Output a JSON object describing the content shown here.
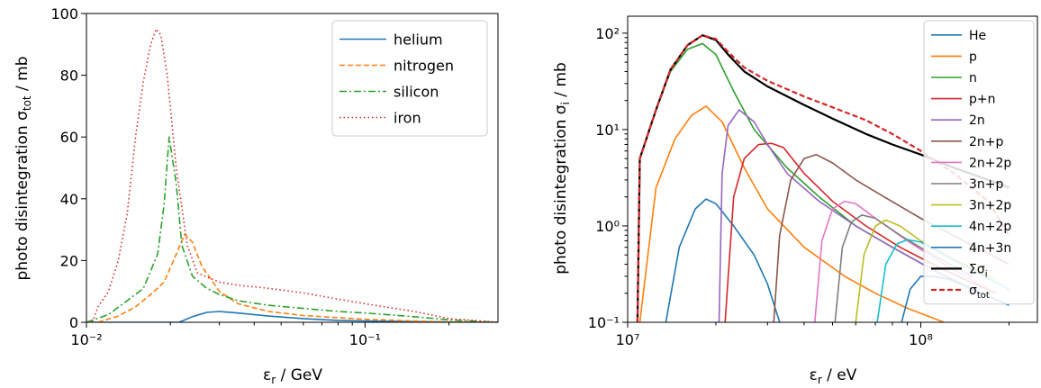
{
  "chart_data": [
    {
      "type": "line",
      "xlabel": "εr / GeV",
      "ylabel": "photo disintegration σtot / mb",
      "xscale": "log",
      "xlim": [
        0.01,
        0.3
      ],
      "ylim": [
        0,
        100
      ],
      "xticks": [
        {
          "value": 0.01,
          "label": "10⁻²"
        },
        {
          "value": 0.1,
          "label": "10⁻¹"
        }
      ],
      "yticks": [
        0,
        20,
        40,
        60,
        80,
        100
      ],
      "legend_position": "top-right",
      "series": [
        {
          "name": "helium",
          "color": "#1f77b4",
          "dash": "solid",
          "x": [
            0.01,
            0.0215,
            0.024,
            0.027,
            0.03,
            0.035,
            0.045,
            0.06,
            0.08,
            0.1,
            0.15,
            0.2,
            0.3
          ],
          "y": [
            0,
            0,
            1.8,
            3.2,
            3.5,
            3.0,
            2.0,
            1.2,
            0.6,
            0.4,
            0.2,
            0.1,
            0
          ]
        },
        {
          "name": "nitrogen",
          "color": "#ff7f0e",
          "dash": "dashed",
          "x": [
            0.011,
            0.013,
            0.015,
            0.017,
            0.019,
            0.021,
            0.0225,
            0.024,
            0.026,
            0.03,
            0.035,
            0.045,
            0.06,
            0.08,
            0.1,
            0.15,
            0.2,
            0.3
          ],
          "y": [
            0,
            2,
            5,
            9,
            13,
            22,
            28.5,
            26,
            18,
            10,
            6,
            3.5,
            2.2,
            1.5,
            1.0,
            0.4,
            0.1,
            0
          ]
        },
        {
          "name": "silicon",
          "color": "#2ca02c",
          "dash": "dashdot",
          "x": [
            0.01,
            0.012,
            0.014,
            0.016,
            0.018,
            0.019,
            0.0198,
            0.021,
            0.022,
            0.024,
            0.027,
            0.03,
            0.035,
            0.045,
            0.06,
            0.08,
            0.1,
            0.15,
            0.2,
            0.3
          ],
          "y": [
            0,
            2.5,
            7,
            11,
            22,
            38,
            60,
            45,
            25,
            15,
            11,
            9,
            7,
            5.5,
            4.5,
            3.5,
            3.0,
            1.8,
            0.8,
            0
          ]
        },
        {
          "name": "iron",
          "color": "#d62728",
          "dash": "dotted",
          "x": [
            0.0105,
            0.011,
            0.012,
            0.013,
            0.014,
            0.015,
            0.016,
            0.017,
            0.0178,
            0.0185,
            0.0195,
            0.021,
            0.023,
            0.025,
            0.03,
            0.035,
            0.045,
            0.06,
            0.08,
            0.1,
            0.15,
            0.2,
            0.3
          ],
          "y": [
            0,
            5,
            10,
            20,
            35,
            60,
            78,
            90,
            95,
            93,
            80,
            50,
            25,
            16,
            13,
            12,
            11,
            9.5,
            7.5,
            6,
            3.5,
            1.2,
            0
          ]
        }
      ]
    },
    {
      "type": "line",
      "xlabel": "εr / eV",
      "ylabel": "photo disintegration σi / mb",
      "xscale": "log",
      "yscale": "log",
      "xlim": [
        10000000,
        250000000
      ],
      "ylim": [
        0.1,
        150
      ],
      "xticks": [
        {
          "value": 10000000,
          "label": "10⁷"
        },
        {
          "value": 100000000,
          "label": "10⁸"
        }
      ],
      "yticks": [
        {
          "value": 0.1,
          "label": "10⁻¹"
        },
        {
          "value": 1,
          "label": "10⁰"
        },
        {
          "value": 10,
          "label": "10¹"
        },
        {
          "value": 100,
          "label": "10²"
        }
      ],
      "legend_position": "top-right",
      "series": [
        {
          "name": "He",
          "color": "#1f77b4",
          "dash": "solid",
          "x": [
            13500000,
            15000000,
            17000000,
            18500000,
            20000000,
            23000000,
            27000000,
            30000000,
            33000000
          ],
          "y": [
            0.1,
            0.6,
            1.5,
            1.9,
            1.7,
            1.0,
            0.5,
            0.25,
            0.1
          ]
        },
        {
          "name": "p",
          "color": "#ff7f0e",
          "dash": "solid",
          "x": [
            11000000,
            12500000,
            14500000,
            16500000,
            18500000,
            21000000,
            25000000,
            30000000,
            40000000,
            55000000,
            70000000,
            90000000,
            120000000
          ],
          "y": [
            0.1,
            2.5,
            8,
            14,
            17.5,
            12,
            4,
            1.5,
            0.6,
            0.3,
            0.2,
            0.14,
            0.1
          ]
        },
        {
          "name": "n",
          "color": "#2ca02c",
          "dash": "solid",
          "x": [
            10800000,
            11000000,
            12500000,
            14000000,
            16000000,
            18000000,
            20000000,
            23000000,
            27000000,
            35000000,
            45000000,
            60000000,
            80000000,
            110000000,
            160000000
          ],
          "y": [
            0.1,
            5,
            16,
            40,
            68,
            78,
            60,
            25,
            10,
            4,
            2,
            1.0,
            0.6,
            0.35,
            0.2
          ]
        },
        {
          "name": "p+n",
          "color": "#d62728",
          "dash": "solid",
          "x": [
            21500000,
            23000000,
            25000000,
            28000000,
            31000000,
            34000000,
            40000000,
            50000000,
            65000000,
            85000000,
            120000000,
            180000000
          ],
          "y": [
            0.1,
            2,
            5,
            7,
            7.2,
            6.5,
            3.5,
            1.8,
            1.0,
            0.6,
            0.35,
            0.2
          ]
        },
        {
          "name": "2n",
          "color": "#9467bd",
          "dash": "solid",
          "x": [
            20500000,
            21000000,
            22000000,
            24000000,
            27000000,
            30000000,
            35000000,
            45000000,
            60000000,
            80000000,
            110000000,
            160000000
          ],
          "y": [
            0.1,
            3.5,
            11,
            16,
            12,
            7,
            3.5,
            1.8,
            1.0,
            0.6,
            0.35,
            0.2
          ]
        },
        {
          "name": "2n+p",
          "color": "#8c564b",
          "dash": "solid",
          "x": [
            31500000,
            33000000,
            36000000,
            40000000,
            44000000,
            50000000,
            60000000,
            75000000,
            100000000,
            140000000,
            200000000
          ],
          "y": [
            0.1,
            0.8,
            3,
            5,
            5.5,
            4.5,
            3,
            2,
            1.2,
            0.7,
            0.4
          ]
        },
        {
          "name": "2n+2p",
          "color": "#e377c2",
          "dash": "solid",
          "x": [
            43500000,
            46000000,
            50000000,
            55000000,
            60000000,
            70000000,
            90000000,
            120000000,
            170000000
          ],
          "y": [
            0.1,
            0.7,
            1.5,
            1.8,
            1.7,
            1.2,
            0.7,
            0.4,
            0.22
          ]
        },
        {
          "name": "3n+p",
          "color": "#7f7f7f",
          "dash": "solid",
          "x": [
            51000000,
            54000000,
            58000000,
            63000000,
            70000000,
            85000000,
            110000000,
            150000000
          ],
          "y": [
            0.1,
            0.6,
            1.1,
            1.3,
            1.2,
            0.8,
            0.5,
            0.3
          ]
        },
        {
          "name": "3n+2p",
          "color": "#bcbd22",
          "dash": "solid",
          "x": [
            60000000,
            64000000,
            70000000,
            76000000,
            85000000,
            100000000,
            130000000,
            180000000
          ],
          "y": [
            0.1,
            0.5,
            1.0,
            1.15,
            1.0,
            0.7,
            0.45,
            0.28
          ]
        },
        {
          "name": "4n+2p",
          "color": "#17becf",
          "dash": "solid",
          "x": [
            71000000,
            76000000,
            83000000,
            90000000,
            100000000,
            120000000,
            150000000,
            200000000
          ],
          "y": [
            0.1,
            0.4,
            0.65,
            0.72,
            0.68,
            0.5,
            0.35,
            0.22
          ]
        },
        {
          "name": "4n+3n",
          "color": "#1f77b4",
          "dash": "solid",
          "x": [
            86000000,
            92000000,
            100000000,
            110000000,
            125000000,
            150000000,
            200000000
          ],
          "y": [
            0.1,
            0.22,
            0.3,
            0.3,
            0.28,
            0.22,
            0.15
          ]
        },
        {
          "name": "Σσi",
          "color": "#000000",
          "dash": "solid",
          "x": [
            10800000,
            11000000,
            12500000,
            14000000,
            16000000,
            18000000,
            20000000,
            22000000,
            25000000,
            30000000,
            40000000,
            50000000,
            65000000,
            80000000,
            100000000,
            130000000,
            170000000,
            200000000
          ],
          "y": [
            0.1,
            5,
            16,
            42,
            75,
            95,
            85,
            60,
            40,
            28,
            18,
            13,
            9,
            7,
            5.5,
            4.0,
            3.0,
            2.5
          ]
        },
        {
          "name": "σtot",
          "color": "#d62728",
          "dash": "dashed",
          "x": [
            10800000,
            11000000,
            12500000,
            14000000,
            16000000,
            18000000,
            20000000,
            22000000,
            25000000,
            30000000,
            40000000,
            50000000,
            65000000,
            80000000,
            100000000,
            130000000,
            170000000,
            200000000
          ],
          "y": [
            0.1,
            5,
            16,
            42,
            75,
            95,
            87,
            64,
            44,
            32,
            22,
            17,
            12.5,
            9,
            6,
            3.5,
            1.8,
            0.8
          ]
        }
      ]
    }
  ]
}
